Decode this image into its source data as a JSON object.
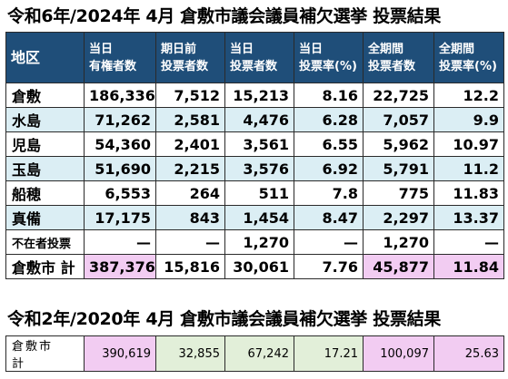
{
  "title_current": "令和6年/2024年 4月 倉敷市議会議員補欠選挙 投票結果",
  "title_previous": "令和2年/2020年 4月 倉敷市議会議員補欠選挙 投票結果",
  "headers": [
    {
      "line1": "地区",
      "line2": ""
    },
    {
      "line1": "当日",
      "line2": "有権者数"
    },
    {
      "line1": "期日前",
      "line2": "投票者数"
    },
    {
      "line1": "当日",
      "line2": "投票者数"
    },
    {
      "line1": "当日",
      "line2": "投票率(%)"
    },
    {
      "line1": "全期間",
      "line2": "投票者数"
    },
    {
      "line1": "全期間",
      "line2": "投票率(%)"
    }
  ],
  "rows": [
    {
      "name": "倉敷",
      "cells": [
        "186,336",
        "7,512",
        "15,213",
        "8.16",
        "22,725",
        "12.2"
      ]
    },
    {
      "name": "水島",
      "cells": [
        "71,262",
        "2,581",
        "4,476",
        "6.28",
        "7,057",
        "9.9"
      ]
    },
    {
      "name": "児島",
      "cells": [
        "54,360",
        "2,401",
        "3,561",
        "6.55",
        "5,962",
        "10.97"
      ]
    },
    {
      "name": "玉島",
      "cells": [
        "51,690",
        "2,215",
        "3,576",
        "6.92",
        "5,791",
        "11.2"
      ]
    },
    {
      "name": "船穂",
      "cells": [
        "6,553",
        "264",
        "511",
        "7.8",
        "775",
        "11.83"
      ]
    },
    {
      "name": "真備",
      "cells": [
        "17,175",
        "843",
        "1,454",
        "8.47",
        "2,297",
        "13.37"
      ]
    },
    {
      "name": "不在者投票",
      "cells": [
        "—",
        "—",
        "1,270",
        "—",
        "1,270",
        "—"
      ]
    }
  ],
  "total": {
    "name": "倉敷市 計",
    "cells": [
      "387,376",
      "15,816",
      "30,061",
      "7.76",
      "45,877",
      "11.84"
    ]
  },
  "previous": {
    "name": "倉敷市　計",
    "cells": [
      "390,619",
      "32,855",
      "67,242",
      "17.21",
      "100,097",
      "25.63"
    ]
  },
  "colors": {
    "header_bg": "#1f4e79",
    "row_blue": "#dbeef4",
    "highlight_pink": "#f2ccf2",
    "highlight_green": "#e2efd9"
  }
}
